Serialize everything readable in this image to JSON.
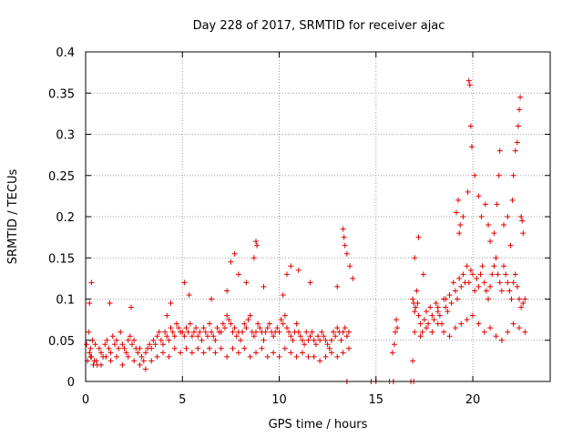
{
  "chart_data": {
    "type": "scatter",
    "title": "Day 228 of 2017, SRMTID for receiver ajac",
    "xlabel": "GPS time / hours",
    "ylabel": "SRMTID / TECUs",
    "xlim": [
      0,
      24
    ],
    "ylim": [
      0,
      0.4
    ],
    "xticks": [
      0,
      5,
      10,
      15,
      20
    ],
    "xtick_labels": [
      "0",
      "5",
      "10",
      "15",
      "20"
    ],
    "yticks": [
      0,
      0.05,
      0.1,
      0.15,
      0.2,
      0.25,
      0.3,
      0.35,
      0.4
    ],
    "ytick_labels": [
      "0",
      "0.05",
      "0.1",
      "0.15",
      "0.2",
      "0.25",
      "0.3",
      "0.35",
      "0.4"
    ],
    "grid": true,
    "marker": "+",
    "series_color": "#e00000",
    "series": [
      {
        "name": "SRMTID",
        "x": [
          0.05,
          0.15,
          0.2,
          0.25,
          0.3,
          0.35,
          0.45,
          0.5,
          0.6,
          0.7,
          0.8,
          0.9,
          1.0,
          1.1,
          1.2,
          1.3,
          1.4,
          1.5,
          1.6,
          1.7,
          1.8,
          1.9,
          2.0,
          2.1,
          2.2,
          2.3,
          2.4,
          2.5,
          2.6,
          2.7,
          2.8,
          2.9,
          3.0,
          3.1,
          3.2,
          3.3,
          3.4,
          3.5,
          3.6,
          3.7,
          3.8,
          3.9,
          4.0,
          4.1,
          4.2,
          4.3,
          4.4,
          4.5,
          4.6,
          4.7,
          4.8,
          4.9,
          5.0,
          5.1,
          5.2,
          5.3,
          5.4,
          5.5,
          5.6,
          5.7,
          5.8,
          5.9,
          6.0,
          6.1,
          6.2,
          6.3,
          6.4,
          6.5,
          6.6,
          6.7,
          6.8,
          6.9,
          7.0,
          7.1,
          7.2,
          7.3,
          7.4,
          7.5,
          7.6,
          7.7,
          7.8,
          7.9,
          8.0,
          8.1,
          8.2,
          8.3,
          8.4,
          8.5,
          8.6,
          8.7,
          8.8,
          8.9,
          9.0,
          9.1,
          9.2,
          9.3,
          9.4,
          9.5,
          9.6,
          9.7,
          9.8,
          9.9,
          10.0,
          10.1,
          10.2,
          10.3,
          10.4,
          10.5,
          10.6,
          10.7,
          10.8,
          10.9,
          11.0,
          11.1,
          11.2,
          11.3,
          11.4,
          11.5,
          11.6,
          11.7,
          11.8,
          11.9,
          12.0,
          12.1,
          12.2,
          12.3,
          12.4,
          12.5,
          12.6,
          12.7,
          12.8,
          12.9,
          13.0,
          13.1,
          13.2,
          13.3,
          13.4,
          13.5,
          13.6,
          0.1,
          0.25,
          0.4,
          0.55,
          0.8,
          1.05,
          1.3,
          1.6,
          1.9,
          2.2,
          2.5,
          2.8,
          3.1,
          3.4,
          3.7,
          4.0,
          4.3,
          4.6,
          4.9,
          5.2,
          5.5,
          5.8,
          6.1,
          6.4,
          6.7,
          7.0,
          7.3,
          7.6,
          7.9,
          8.2,
          8.5,
          8.8,
          9.1,
          9.4,
          9.7,
          10.0,
          10.3,
          10.6,
          10.9,
          11.2,
          11.5,
          11.8,
          12.1,
          12.4,
          12.7,
          13.0,
          13.3,
          13.6,
          0.3,
          0.2,
          1.25,
          2.35,
          4.2,
          4.4,
          5.1,
          5.35,
          6.5,
          7.3,
          7.5,
          7.7,
          7.9,
          8.3,
          8.7,
          8.8,
          8.85,
          9.2,
          10.2,
          10.4,
          10.6,
          11.0,
          11.6,
          13.0,
          13.3,
          13.35,
          13.4,
          13.5,
          13.65,
          13.8,
          13.5,
          14.75,
          15.0,
          15.7,
          15.9,
          16.8,
          16.95,
          15.85,
          15.95,
          16.0,
          16.05,
          16.1,
          16.9,
          16.95,
          17.0,
          17.05,
          17.1,
          17.15,
          17.2,
          17.3,
          17.4,
          17.5,
          17.6,
          17.7,
          17.8,
          17.9,
          18.0,
          18.1,
          18.2,
          18.3,
          18.4,
          18.5,
          18.6,
          18.7,
          18.8,
          18.9,
          19.0,
          19.1,
          19.2,
          19.3,
          19.4,
          19.5,
          19.6,
          19.7,
          19.8,
          19.9,
          20.0,
          20.1,
          20.2,
          20.3,
          20.4,
          20.5,
          20.6,
          20.7,
          20.8,
          20.9,
          21.0,
          21.1,
          21.2,
          21.3,
          21.4,
          21.5,
          21.6,
          21.7,
          21.8,
          21.9,
          22.0,
          22.1,
          22.2,
          22.3,
          22.4,
          22.5,
          22.6,
          22.7,
          17.0,
          17.3,
          17.6,
          17.9,
          18.2,
          18.5,
          18.8,
          19.1,
          19.4,
          19.7,
          20.0,
          20.3,
          20.6,
          20.9,
          21.2,
          21.5,
          21.8,
          22.1,
          22.4,
          22.7,
          16.9,
          17.0,
          17.2,
          17.45,
          18.2,
          18.6,
          19.15,
          19.25,
          19.3,
          19.35,
          19.5,
          19.75,
          19.8,
          19.85,
          19.9,
          19.95,
          20.1,
          20.3,
          20.45,
          20.65,
          20.8,
          20.9,
          21.1,
          21.25,
          21.35,
          21.4,
          21.6,
          21.8,
          21.95,
          22.05,
          22.1,
          22.2,
          22.3,
          22.35,
          22.4,
          22.45,
          22.5,
          22.55,
          22.6
        ],
        "y": [
          0.045,
          0.06,
          0.035,
          0.04,
          0.03,
          0.05,
          0.025,
          0.045,
          0.02,
          0.04,
          0.035,
          0.03,
          0.045,
          0.05,
          0.04,
          0.035,
          0.055,
          0.045,
          0.05,
          0.04,
          0.06,
          0.045,
          0.04,
          0.035,
          0.05,
          0.055,
          0.045,
          0.05,
          0.04,
          0.035,
          0.04,
          0.03,
          0.025,
          0.035,
          0.04,
          0.045,
          0.04,
          0.05,
          0.045,
          0.055,
          0.06,
          0.05,
          0.045,
          0.06,
          0.055,
          0.05,
          0.065,
          0.06,
          0.055,
          0.07,
          0.065,
          0.06,
          0.06,
          0.055,
          0.065,
          0.06,
          0.07,
          0.055,
          0.06,
          0.065,
          0.055,
          0.06,
          0.05,
          0.065,
          0.06,
          0.055,
          0.07,
          0.06,
          0.055,
          0.05,
          0.065,
          0.06,
          0.06,
          0.07,
          0.065,
          0.08,
          0.075,
          0.07,
          0.06,
          0.065,
          0.055,
          0.06,
          0.05,
          0.06,
          0.07,
          0.065,
          0.075,
          0.08,
          0.06,
          0.055,
          0.06,
          0.07,
          0.065,
          0.06,
          0.05,
          0.06,
          0.065,
          0.07,
          0.06,
          0.055,
          0.06,
          0.065,
          0.06,
          0.075,
          0.07,
          0.08,
          0.065,
          0.06,
          0.055,
          0.05,
          0.06,
          0.07,
          0.06,
          0.055,
          0.05,
          0.045,
          0.06,
          0.05,
          0.055,
          0.06,
          0.05,
          0.045,
          0.055,
          0.05,
          0.06,
          0.055,
          0.05,
          0.045,
          0.04,
          0.05,
          0.06,
          0.055,
          0.065,
          0.06,
          0.05,
          0.06,
          0.065,
          0.055,
          0.06,
          0.025,
          0.03,
          0.02,
          0.025,
          0.02,
          0.03,
          0.025,
          0.03,
          0.02,
          0.03,
          0.025,
          0.02,
          0.015,
          0.025,
          0.03,
          0.035,
          0.03,
          0.04,
          0.035,
          0.04,
          0.035,
          0.04,
          0.035,
          0.04,
          0.035,
          0.04,
          0.03,
          0.04,
          0.035,
          0.04,
          0.03,
          0.035,
          0.04,
          0.03,
          0.035,
          0.03,
          0.04,
          0.035,
          0.03,
          0.035,
          0.03,
          0.03,
          0.025,
          0.03,
          0.035,
          0.03,
          0.035,
          0.04,
          0.12,
          0.095,
          0.095,
          0.09,
          0.08,
          0.095,
          0.12,
          0.105,
          0.1,
          0.11,
          0.145,
          0.155,
          0.13,
          0.12,
          0.15,
          0.17,
          0.165,
          0.115,
          0.105,
          0.13,
          0.14,
          0.135,
          0.12,
          0.115,
          0.185,
          0.175,
          0.165,
          0.155,
          0.14,
          0.125,
          0.0,
          0.0,
          0.0,
          0.0,
          0.0,
          0.0,
          0.0,
          0.035,
          0.045,
          0.06,
          0.075,
          0.065,
          0.1,
          0.095,
          0.085,
          0.09,
          0.11,
          0.095,
          0.08,
          0.07,
          0.06,
          0.075,
          0.085,
          0.07,
          0.09,
          0.08,
          0.075,
          0.095,
          0.085,
          0.08,
          0.07,
          0.1,
          0.09,
          0.085,
          0.105,
          0.095,
          0.12,
          0.11,
          0.1,
          0.125,
          0.115,
          0.13,
          0.12,
          0.14,
          0.12,
          0.135,
          0.13,
          0.11,
          0.125,
          0.115,
          0.13,
          0.14,
          0.12,
          0.11,
          0.1,
          0.115,
          0.13,
          0.14,
          0.15,
          0.13,
          0.12,
          0.11,
          0.14,
          0.13,
          0.12,
          0.11,
          0.1,
          0.12,
          0.13,
          0.115,
          0.1,
          0.09,
          0.095,
          0.1,
          0.06,
          0.055,
          0.065,
          0.06,
          0.07,
          0.06,
          0.055,
          0.065,
          0.07,
          0.075,
          0.08,
          0.07,
          0.06,
          0.065,
          0.055,
          0.05,
          0.06,
          0.07,
          0.065,
          0.06,
          0.025,
          0.15,
          0.175,
          0.13,
          0.09,
          0.1,
          0.205,
          0.22,
          0.18,
          0.19,
          0.2,
          0.23,
          0.365,
          0.36,
          0.31,
          0.285,
          0.25,
          0.225,
          0.2,
          0.215,
          0.19,
          0.17,
          0.18,
          0.215,
          0.25,
          0.28,
          0.19,
          0.2,
          0.165,
          0.22,
          0.25,
          0.28,
          0.29,
          0.31,
          0.33,
          0.345,
          0.2,
          0.195,
          0.18
        ]
      }
    ]
  }
}
